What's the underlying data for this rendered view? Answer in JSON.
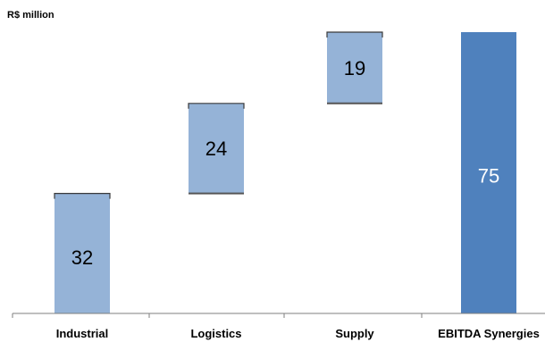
{
  "chart_data": {
    "type": "waterfall",
    "unit_label": "R$ million",
    "categories": [
      "Industrial",
      "Logistics",
      "Supply",
      "EBITDA Synergies"
    ],
    "values": [
      32,
      24,
      19,
      75
    ],
    "kinds": [
      "increment",
      "increment",
      "increment",
      "total"
    ],
    "ylim": [
      0,
      75
    ],
    "grid": false,
    "legend": "none",
    "colors": {
      "increment": "#95b3d7",
      "total": "#4f81bd",
      "axis": "#7f7f7f",
      "increment_text": "#000000",
      "total_text": "#ffffff"
    }
  }
}
